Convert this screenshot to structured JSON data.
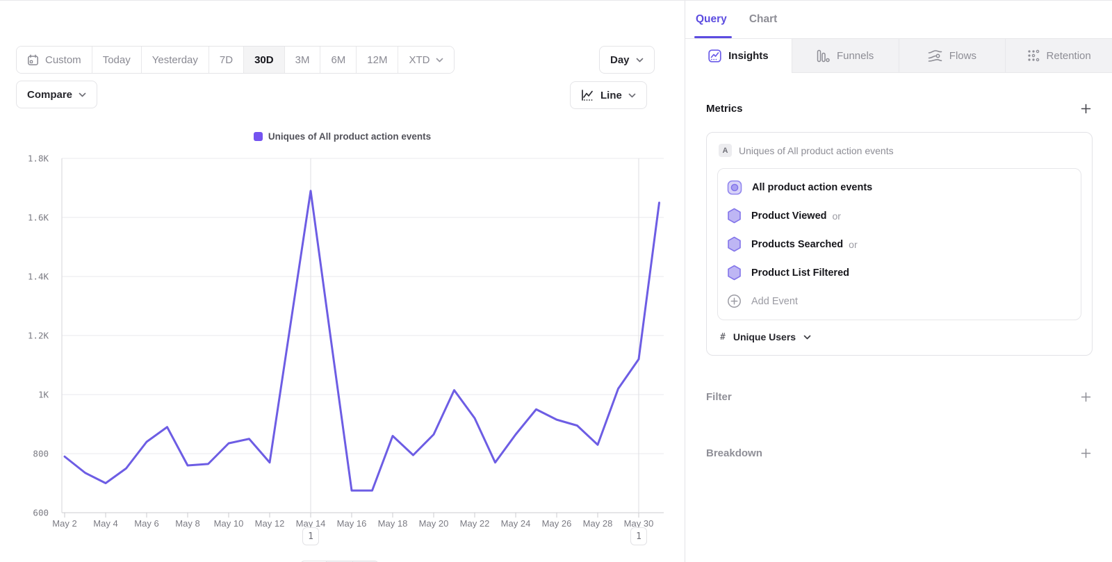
{
  "toolbar": {
    "date_ranges": [
      {
        "label": "Custom",
        "icon": "calendar",
        "selected": false,
        "chevron": false
      },
      {
        "label": "Today",
        "selected": false,
        "chevron": false
      },
      {
        "label": "Yesterday",
        "selected": false,
        "chevron": false
      },
      {
        "label": "7D",
        "selected": false,
        "chevron": false
      },
      {
        "label": "30D",
        "selected": true,
        "chevron": false
      },
      {
        "label": "3M",
        "selected": false,
        "chevron": false
      },
      {
        "label": "6M",
        "selected": false,
        "chevron": false
      },
      {
        "label": "12M",
        "selected": false,
        "chevron": false
      },
      {
        "label": "XTD",
        "selected": false,
        "chevron": true
      }
    ],
    "granularity_label": "Day",
    "compare_label": "Compare",
    "chart_type_label": "Line"
  },
  "right_panel": {
    "tabs": {
      "query": "Query",
      "chart": "Chart"
    },
    "report_tabs": [
      {
        "label": "Insights",
        "icon": "insights-icon",
        "active": true
      },
      {
        "label": "Funnels",
        "icon": "funnels-icon",
        "active": false
      },
      {
        "label": "Flows",
        "icon": "flows-icon",
        "active": false
      },
      {
        "label": "Retention",
        "icon": "retention-icon",
        "active": false
      }
    ],
    "metrics": {
      "title": "Metrics",
      "group_badge": "A",
      "group_title": "Uniques of All product action events",
      "events": [
        {
          "label": "All product action events",
          "suffix": "",
          "icon": "all-events",
          "muted": false
        },
        {
          "label": "Product Viewed",
          "suffix": "or",
          "icon": "hexagon",
          "muted": false
        },
        {
          "label": "Products Searched",
          "suffix": "or",
          "icon": "hexagon",
          "muted": false
        },
        {
          "label": "Product List Filtered",
          "suffix": "",
          "icon": "hexagon",
          "muted": false
        },
        {
          "label": "Add Event",
          "suffix": "",
          "icon": "add",
          "muted": true
        }
      ],
      "measurement": {
        "prefix": "#",
        "label": "Unique Users"
      }
    },
    "sections": {
      "filter": "Filter",
      "breakdown": "Breakdown"
    }
  },
  "chart_data": {
    "type": "line",
    "legend": "Uniques of All product action events",
    "series": [
      {
        "name": "Uniques of All product action events",
        "color": "#6d5de4",
        "x": [
          "May 2",
          "May 3",
          "May 4",
          "May 5",
          "May 6",
          "May 7",
          "May 8",
          "May 9",
          "May 10",
          "May 11",
          "May 12",
          "May 13",
          "May 14",
          "May 15",
          "May 16",
          "May 17",
          "May 18",
          "May 19",
          "May 20",
          "May 21",
          "May 22",
          "May 23",
          "May 24",
          "May 25",
          "May 26",
          "May 27",
          "May 28",
          "May 29",
          "May 30",
          "May 31"
        ],
        "values": [
          790,
          735,
          700,
          750,
          840,
          890,
          760,
          765,
          835,
          850,
          770,
          1230,
          1690,
          1180,
          675,
          675,
          860,
          795,
          865,
          1015,
          920,
          770,
          865,
          950,
          915,
          895,
          830,
          1020,
          1120,
          1650
        ]
      }
    ],
    "x_tick_labels": [
      "May 2",
      "May 4",
      "May 6",
      "May 8",
      "May 10",
      "May 12",
      "May 14",
      "May 16",
      "May 18",
      "May 20",
      "May 22",
      "May 24",
      "May 26",
      "May 28",
      "May 30"
    ],
    "y_tick_labels": [
      "600",
      "800",
      "1K",
      "1.2K",
      "1.4K",
      "1.6K",
      "1.8K"
    ],
    "ylim": [
      600,
      1800
    ],
    "grid": "horizontal",
    "legend_position": "top-center",
    "annotations": [
      {
        "x": "May 14",
        "count": "1"
      },
      {
        "x": "May 30",
        "count": "1"
      }
    ]
  },
  "colors": {
    "accent": "#5c4ce0",
    "line": "#6d5de4",
    "legend_swatch": "#7453f0",
    "hexagon_fill": "#beb6f4",
    "hexagon_stroke": "#8375ea"
  }
}
